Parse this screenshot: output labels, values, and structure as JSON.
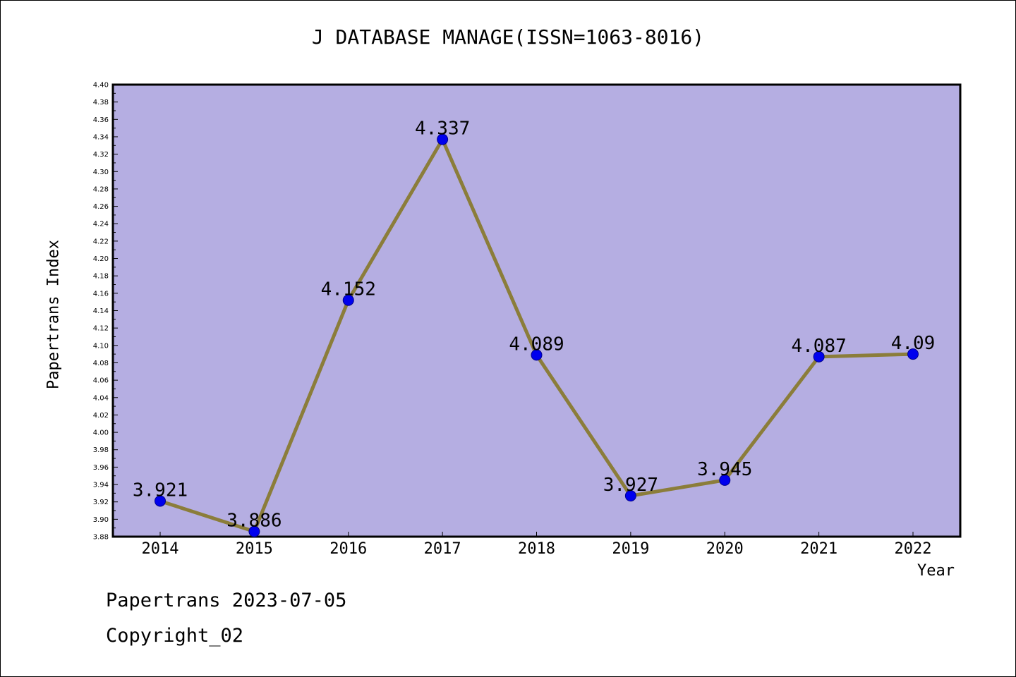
{
  "header": {
    "title": "J DATABASE MANAGE(ISSN=1063-8016)"
  },
  "footer": {
    "line1": "Papertrans 2023-07-05",
    "line2": "Copyright_02"
  },
  "chart_data": {
    "type": "line",
    "title": "J DATABASE MANAGE(ISSN=1063-8016)",
    "xlabel": "Year",
    "ylabel": "Papertrans Index",
    "categories": [
      "2014",
      "2015",
      "2016",
      "2017",
      "2018",
      "2019",
      "2020",
      "2021",
      "2022"
    ],
    "values": [
      3.921,
      3.886,
      4.152,
      4.337,
      4.089,
      3.927,
      3.945,
      4.087,
      4.09
    ],
    "data_labels": [
      "3.921",
      "3.886",
      "4.152",
      "4.337",
      "4.089",
      "3.927",
      "3.945",
      "4.087",
      "4.09"
    ],
    "ylim": [
      3.88,
      4.4
    ],
    "ytick_step": 0.02,
    "grid": false,
    "colors": {
      "plot_background": "#b5aee2",
      "line": "#8b7d3a",
      "marker": "#0000ee",
      "marker_edge": "#00008b"
    }
  }
}
